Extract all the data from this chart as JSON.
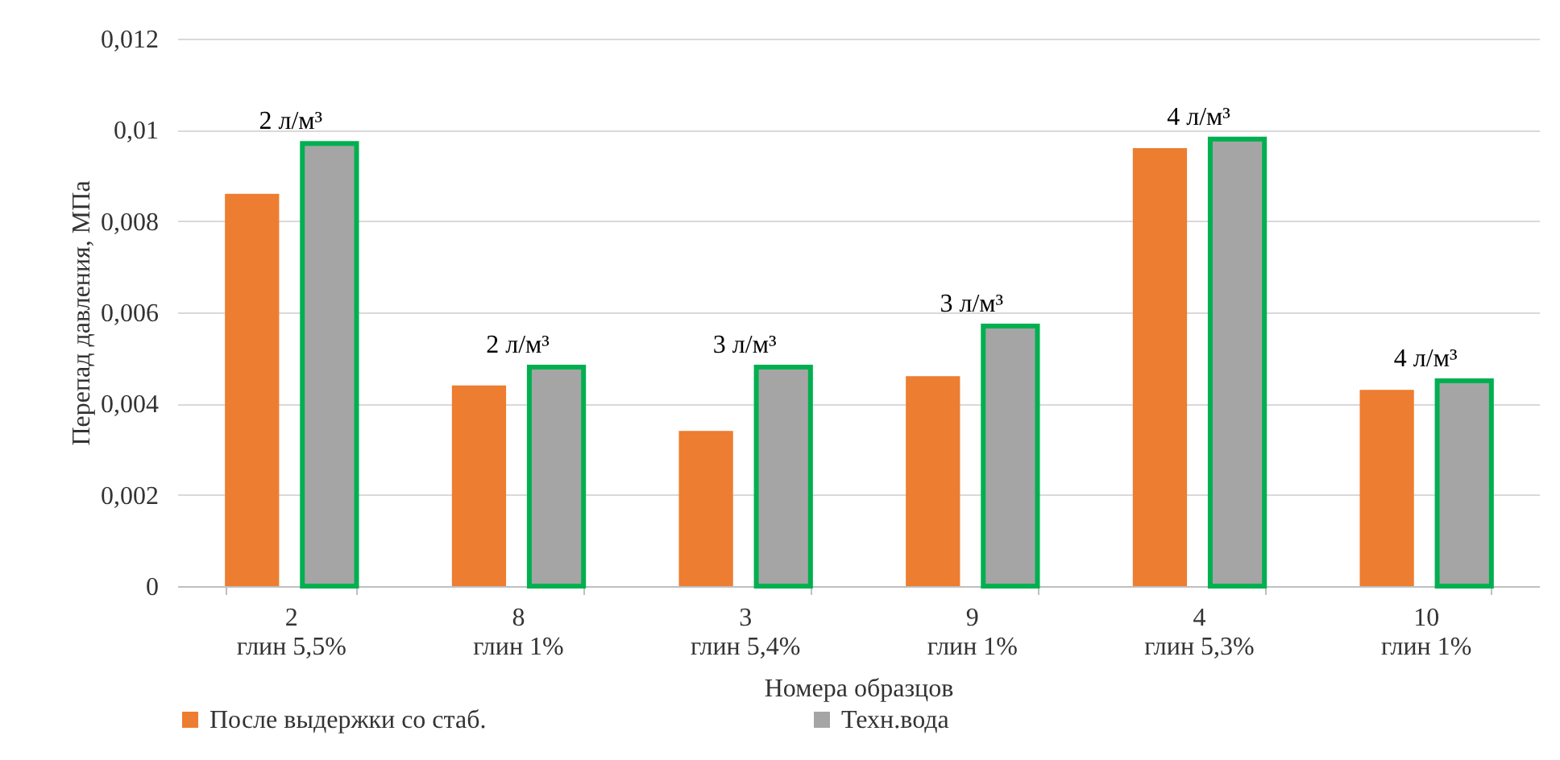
{
  "chart_data": {
    "type": "bar",
    "xlabel": "Номера образцов",
    "ylabel": "Перепад давления, МПа",
    "categories": [
      "2\nглин 5,5%",
      "8\nглин 1%",
      "3\nглин 5,4%",
      "9\nглин 1%",
      "4\nглин 5,3%",
      "10\nглин 1%"
    ],
    "series": [
      {
        "name": "После выдержки со стаб.",
        "color": "#ed7d31",
        "values": [
          0.0086,
          0.0044,
          0.0034,
          0.0046,
          0.0096,
          0.0043
        ]
      },
      {
        "name": "Техн.вода",
        "color": "#a5a5a5",
        "values": [
          0.0097,
          0.0048,
          0.0048,
          0.0057,
          0.0098,
          0.0045
        ]
      }
    ],
    "ylim": [
      0,
      0.012
    ],
    "yticks": [
      {
        "value": 0,
        "label": "0"
      },
      {
        "value": 0.002,
        "label": "0,002"
      },
      {
        "value": 0.004,
        "label": "0,004"
      },
      {
        "value": 0.006,
        "label": "0,006"
      },
      {
        "value": 0.008,
        "label": "0,008"
      },
      {
        "value": 0.01,
        "label": "0,01"
      },
      {
        "value": 0.012,
        "label": "0,012"
      }
    ],
    "annotations": [
      "2 л/м³",
      "2 л/м³",
      "3 л/м³",
      "3 л/м³",
      "4 л/м³",
      "4 л/м³"
    ],
    "grid": "y",
    "legend": "bottom"
  }
}
